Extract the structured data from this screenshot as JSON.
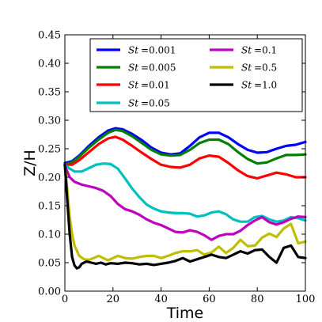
{
  "chart_data": {
    "type": "line",
    "title": "",
    "xlabel": "Time",
    "ylabel": "Z/H",
    "xlim": [
      0,
      100
    ],
    "ylim": [
      0.0,
      0.45
    ],
    "x_ticks": [
      "0",
      "20",
      "40",
      "60",
      "80",
      "100"
    ],
    "y_ticks": [
      "0.00",
      "0.05",
      "0.10",
      "0.15",
      "0.20",
      "0.25",
      "0.30",
      "0.35",
      "0.40",
      "0.45"
    ],
    "grid": false,
    "legend": {
      "placement": "top-right",
      "columns": 2
    },
    "series": [
      {
        "name": "St =0.001",
        "label_var": "St",
        "label_val": "=0.001",
        "color": "#0000ff",
        "x": [
          0,
          3,
          6,
          10,
          14,
          18,
          21,
          24,
          28,
          32,
          36,
          40,
          44,
          48,
          52,
          56,
          60,
          64,
          68,
          72,
          76,
          80,
          84,
          88,
          92,
          96,
          100
        ],
        "y": [
          0.225,
          0.228,
          0.238,
          0.255,
          0.27,
          0.282,
          0.286,
          0.284,
          0.276,
          0.265,
          0.252,
          0.243,
          0.24,
          0.242,
          0.255,
          0.27,
          0.278,
          0.278,
          0.27,
          0.258,
          0.248,
          0.243,
          0.244,
          0.25,
          0.255,
          0.257,
          0.262
        ]
      },
      {
        "name": "St =0.005",
        "label_var": "St",
        "label_val": "=0.005",
        "color": "#008000",
        "x": [
          0,
          3,
          6,
          10,
          14,
          18,
          21,
          24,
          28,
          32,
          36,
          40,
          44,
          48,
          52,
          56,
          60,
          64,
          68,
          72,
          76,
          80,
          84,
          88,
          92,
          96,
          100
        ],
        "y": [
          0.222,
          0.226,
          0.236,
          0.252,
          0.266,
          0.278,
          0.283,
          0.281,
          0.272,
          0.26,
          0.248,
          0.24,
          0.238,
          0.239,
          0.248,
          0.26,
          0.266,
          0.266,
          0.258,
          0.244,
          0.232,
          0.224,
          0.226,
          0.233,
          0.239,
          0.239,
          0.24
        ]
      },
      {
        "name": "St =0.01",
        "label_var": "St",
        "label_val": "=0.01",
        "color": "#ff0000",
        "x": [
          0,
          3,
          6,
          10,
          14,
          18,
          21,
          24,
          28,
          32,
          36,
          40,
          44,
          48,
          52,
          56,
          60,
          64,
          68,
          72,
          76,
          80,
          84,
          88,
          92,
          96,
          100
        ],
        "y": [
          0.222,
          0.222,
          0.23,
          0.244,
          0.258,
          0.268,
          0.271,
          0.266,
          0.255,
          0.243,
          0.232,
          0.222,
          0.218,
          0.217,
          0.222,
          0.233,
          0.238,
          0.236,
          0.225,
          0.212,
          0.202,
          0.198,
          0.203,
          0.208,
          0.205,
          0.2,
          0.2
        ]
      },
      {
        "name": "St =0.05",
        "label_var": "St",
        "label_val": "=0.05",
        "color": "#00bfbf",
        "x": [
          0,
          2,
          4,
          7,
          10,
          13,
          16,
          19,
          22,
          25,
          28,
          31,
          34,
          37,
          40,
          43,
          46,
          49,
          52,
          55,
          58,
          61,
          64,
          67,
          70,
          73,
          76,
          79,
          82,
          85,
          88,
          91,
          94,
          97,
          100
        ],
        "y": [
          0.222,
          0.215,
          0.21,
          0.21,
          0.216,
          0.222,
          0.224,
          0.223,
          0.215,
          0.198,
          0.18,
          0.165,
          0.152,
          0.145,
          0.14,
          0.138,
          0.137,
          0.137,
          0.136,
          0.131,
          0.133,
          0.138,
          0.14,
          0.135,
          0.126,
          0.122,
          0.122,
          0.13,
          0.132,
          0.126,
          0.122,
          0.124,
          0.13,
          0.128,
          0.124
        ]
      },
      {
        "name": "St =0.1",
        "label_var": "St",
        "label_val": "=0.1",
        "color": "#bf00bf",
        "x": [
          0,
          2,
          4,
          7,
          10,
          13,
          16,
          19,
          22,
          25,
          28,
          31,
          34,
          37,
          40,
          43,
          46,
          49,
          52,
          55,
          58,
          61,
          64,
          67,
          70,
          73,
          76,
          79,
          82,
          85,
          88,
          91,
          94,
          97,
          100
        ],
        "y": [
          0.22,
          0.2,
          0.192,
          0.187,
          0.184,
          0.181,
          0.176,
          0.167,
          0.153,
          0.144,
          0.14,
          0.134,
          0.126,
          0.12,
          0.116,
          0.11,
          0.104,
          0.103,
          0.107,
          0.104,
          0.098,
          0.09,
          0.097,
          0.1,
          0.1,
          0.106,
          0.116,
          0.124,
          0.13,
          0.121,
          0.117,
          0.121,
          0.127,
          0.131,
          0.13
        ]
      },
      {
        "name": "St =0.5",
        "label_var": "St",
        "label_val": "=0.5",
        "color": "#bfbf00",
        "x": [
          0,
          1,
          2,
          3,
          4,
          6,
          8,
          10,
          12,
          14,
          16,
          18,
          20,
          22,
          25,
          28,
          31,
          34,
          37,
          40,
          43,
          46,
          49,
          52,
          55,
          58,
          61,
          64,
          67,
          70,
          73,
          76,
          79,
          82,
          85,
          88,
          91,
          94,
          97,
          100
        ],
        "y": [
          0.222,
          0.18,
          0.13,
          0.1,
          0.08,
          0.062,
          0.056,
          0.055,
          0.058,
          0.062,
          0.058,
          0.054,
          0.058,
          0.062,
          0.058,
          0.057,
          0.06,
          0.062,
          0.062,
          0.058,
          0.062,
          0.067,
          0.07,
          0.07,
          0.072,
          0.064,
          0.068,
          0.078,
          0.067,
          0.076,
          0.09,
          0.079,
          0.08,
          0.094,
          0.101,
          0.095,
          0.11,
          0.118,
          0.084,
          0.087
        ]
      },
      {
        "name": "St =1.0",
        "label_var": "St",
        "label_val": "=1.0",
        "color": "#000000",
        "x": [
          0,
          1,
          2,
          3,
          4,
          5,
          6,
          7,
          9,
          11,
          13,
          15,
          17,
          19,
          22,
          25,
          28,
          31,
          34,
          37,
          40,
          43,
          46,
          49,
          52,
          55,
          58,
          61,
          64,
          67,
          70,
          73,
          76,
          79,
          82,
          85,
          88,
          91,
          94,
          97,
          100
        ],
        "y": [
          0.222,
          0.16,
          0.1,
          0.06,
          0.045,
          0.04,
          0.042,
          0.048,
          0.052,
          0.05,
          0.048,
          0.05,
          0.047,
          0.049,
          0.048,
          0.05,
          0.049,
          0.047,
          0.048,
          0.046,
          0.048,
          0.05,
          0.053,
          0.058,
          0.052,
          0.056,
          0.06,
          0.064,
          0.06,
          0.058,
          0.064,
          0.07,
          0.066,
          0.072,
          0.073,
          0.06,
          0.05,
          0.076,
          0.08,
          0.06,
          0.058
        ]
      }
    ]
  }
}
